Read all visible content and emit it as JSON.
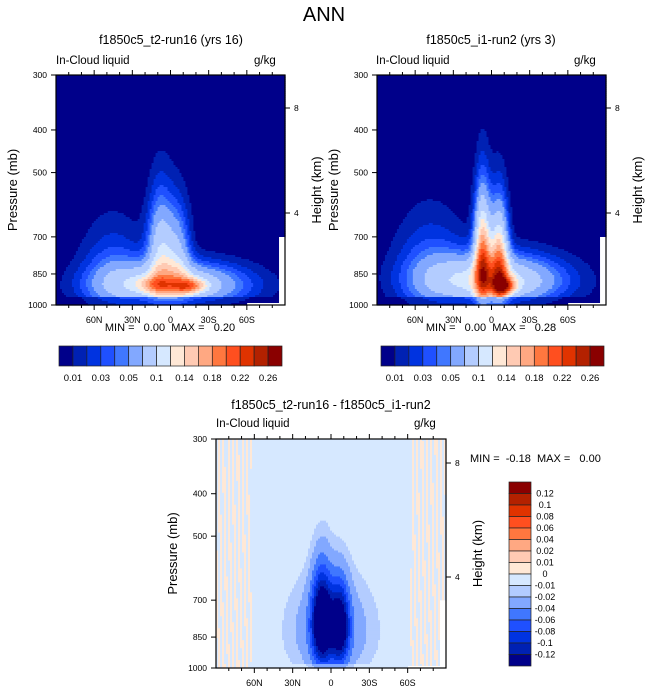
{
  "title": "ANN",
  "colors": {
    "levels": [
      "#00008a",
      "#0021b3",
      "#0033e0",
      "#1f50ff",
      "#4077ff",
      "#82a8ff",
      "#b3ccff",
      "#d6e8ff",
      "#ffe8d6",
      "#ffcab3",
      "#ffa882",
      "#ff773f",
      "#ff4f1f",
      "#e03300",
      "#b32100",
      "#8a0000"
    ],
    "diff_levels": [
      "#00008a",
      "#0021b3",
      "#0033e0",
      "#1f50ff",
      "#4077ff",
      "#82a8ff",
      "#b3ccff",
      "#d6e8ff",
      "#ffe8d6",
      "#ffcab3",
      "#ffa882",
      "#ff773f",
      "#ff4f1f",
      "#e03300",
      "#b32100",
      "#8a0000"
    ],
    "missing": "#ffffff",
    "axis": "#000000"
  },
  "chart_data": [
    {
      "type": "heatmap",
      "id": "panel-1",
      "title": "f1850c5_t2-run16 (yrs 16)",
      "left_label": "In-Cloud liquid",
      "units": "g/kg",
      "xlabel": "",
      "ylabel": "Pressure (mb)",
      "y2label": "Height (km)",
      "x_ticks": [
        "60N",
        "30N",
        "0",
        "30S",
        "60S"
      ],
      "x_tick_values": [
        60,
        30,
        0,
        -30,
        -60
      ],
      "xlim": [
        90,
        -90
      ],
      "y_ticks": [
        "300",
        "400",
        "500",
        "700",
        "850",
        "1000"
      ],
      "y_tick_values": [
        300,
        400,
        500,
        700,
        850,
        1000
      ],
      "ylim": [
        300,
        1000
      ],
      "y2_ticks": [
        "8",
        "4"
      ],
      "y2_tick_values": [
        8,
        4
      ],
      "min_text": "MIN =   0.00  MAX =   0.20",
      "min": 0.0,
      "max": 0.2,
      "contour_levels": [
        0.01,
        0.02,
        0.03,
        0.04,
        0.05,
        0.07,
        0.1,
        0.12,
        0.14,
        0.16,
        0.18,
        0.2,
        0.22,
        0.24,
        0.26
      ],
      "colorbar_labels": [
        "0.01",
        "0.03",
        "0.05",
        "0.1",
        "0.14",
        "0.18",
        "0.22",
        "0.26"
      ],
      "colorbar_orientation": "horizontal",
      "field": {
        "description": "Cloud liquid maximum near 850-900 mb in tropics and subtropics; deep convective tower near 10N/5S; low values aloft",
        "peak_value": 0.2,
        "peak_lat": -15,
        "peak_pressure": 900
      }
    },
    {
      "type": "heatmap",
      "id": "panel-2",
      "title": "f1850c5_i1-run2 (yrs 3)",
      "left_label": "In-Cloud liquid",
      "units": "g/kg",
      "ylabel": "Pressure (mb)",
      "y2label": "Height (km)",
      "x_ticks": [
        "60N",
        "30N",
        "0",
        "30S",
        "60S"
      ],
      "x_tick_values": [
        60,
        30,
        0,
        -30,
        -60
      ],
      "xlim": [
        90,
        -90
      ],
      "y_ticks": [
        "300",
        "400",
        "500",
        "700",
        "850",
        "1000"
      ],
      "y_tick_values": [
        300,
        400,
        500,
        700,
        850,
        1000
      ],
      "ylim": [
        300,
        1000
      ],
      "y2_ticks": [
        "8",
        "4"
      ],
      "y2_tick_values": [
        8,
        4
      ],
      "min_text": "MIN =   0.00  MAX =   0.28",
      "min": 0.0,
      "max": 0.28,
      "contour_levels": [
        0.01,
        0.02,
        0.03,
        0.04,
        0.05,
        0.07,
        0.1,
        0.12,
        0.14,
        0.16,
        0.18,
        0.2,
        0.22,
        0.24,
        0.26
      ],
      "colorbar_labels": [
        "0.01",
        "0.03",
        "0.05",
        "0.1",
        "0.14",
        "0.18",
        "0.22",
        "0.26"
      ],
      "colorbar_orientation": "horizontal",
      "field": {
        "description": "Twin deep convective towers near 5N and 8S reaching ~550 mb; maximum near 900 mb around 10S",
        "peak_value": 0.28,
        "peak_lat": -10,
        "peak_pressure": 900
      }
    },
    {
      "type": "heatmap",
      "id": "panel-diff",
      "title": "f1850c5_t2-run16 - f1850c5_i1-run2",
      "left_label": "In-Cloud liquid",
      "units": "g/kg",
      "ylabel": "Pressure (mb)",
      "y2label": "Height (km)",
      "x_ticks": [
        "60N",
        "30N",
        "0",
        "30S",
        "60S"
      ],
      "x_tick_values": [
        60,
        30,
        0,
        -30,
        -60
      ],
      "xlim": [
        90,
        -90
      ],
      "y_ticks": [
        "300",
        "400",
        "500",
        "700",
        "850",
        "1000"
      ],
      "y_tick_values": [
        300,
        400,
        500,
        700,
        850,
        1000
      ],
      "ylim": [
        300,
        1000
      ],
      "y2_ticks": [
        "8",
        "4"
      ],
      "y2_tick_values": [
        8,
        4
      ],
      "min_text": "MIN =  -0.18  MAX =   0.00",
      "min": -0.18,
      "max": 0.0,
      "contour_levels": [
        -0.12,
        -0.1,
        -0.08,
        -0.06,
        -0.04,
        -0.02,
        -0.01,
        0,
        0.01,
        0.02,
        0.04,
        0.06,
        0.08,
        0.1,
        0.12
      ],
      "colorbar_labels": [
        "0.12",
        "0.1",
        "0.08",
        "0.06",
        "0.04",
        "0.02",
        "0.01",
        "0",
        "-0.01",
        "-0.02",
        "-0.04",
        "-0.06",
        "-0.08",
        "-0.1",
        "-0.12"
      ],
      "colorbar_orientation": "vertical",
      "field": {
        "description": "Negative difference with twin minima near 7N and 7S from 650-900 mb; near-zero elsewhere with slight positive patches at high latitudes",
        "min_value": -0.18
      }
    }
  ]
}
